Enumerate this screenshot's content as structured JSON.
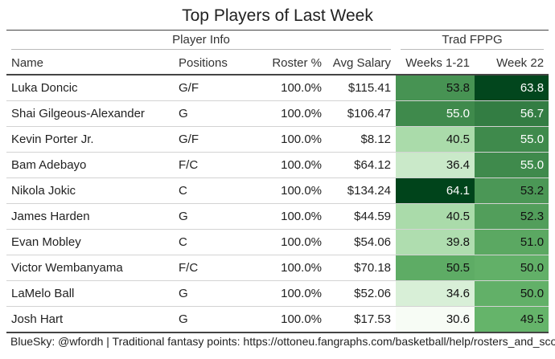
{
  "title": "Top Players of Last Week",
  "spanners": {
    "player_info": "Player Info",
    "trad_fppg": "Trad FPPG"
  },
  "columns": {
    "name": "Name",
    "positions": "Positions",
    "roster": "Roster %",
    "salary": "Avg Salary",
    "weeks": "Weeks 1-21",
    "week22": "Week 22"
  },
  "rows": [
    {
      "name": "Luka Doncic",
      "positions": "G/F",
      "roster": "100.0%",
      "salary": "$115.41",
      "weeks": "53.8",
      "week22": "63.8",
      "weeks_val": 53.8,
      "week22_val": 63.8
    },
    {
      "name": "Shai Gilgeous-Alexander",
      "positions": "G",
      "roster": "100.0%",
      "salary": "$106.47",
      "weeks": "55.0",
      "week22": "56.7",
      "weeks_val": 55.0,
      "week22_val": 56.7
    },
    {
      "name": "Kevin Porter Jr.",
      "positions": "G/F",
      "roster": "100.0%",
      "salary": "$8.12",
      "weeks": "40.5",
      "week22": "55.0",
      "weeks_val": 40.5,
      "week22_val": 55.0
    },
    {
      "name": "Bam Adebayo",
      "positions": "F/C",
      "roster": "100.0%",
      "salary": "$64.12",
      "weeks": "36.4",
      "week22": "55.0",
      "weeks_val": 36.4,
      "week22_val": 55.0
    },
    {
      "name": "Nikola Jokic",
      "positions": "C",
      "roster": "100.0%",
      "salary": "$134.24",
      "weeks": "64.1",
      "week22": "53.2",
      "weeks_val": 64.1,
      "week22_val": 53.2
    },
    {
      "name": "James Harden",
      "positions": "G",
      "roster": "100.0%",
      "salary": "$44.59",
      "weeks": "40.5",
      "week22": "52.3",
      "weeks_val": 40.5,
      "week22_val": 52.3
    },
    {
      "name": "Evan Mobley",
      "positions": "C",
      "roster": "100.0%",
      "salary": "$54.06",
      "weeks": "39.8",
      "week22": "51.0",
      "weeks_val": 39.8,
      "week22_val": 51.0
    },
    {
      "name": "Victor Wembanyama",
      "positions": "F/C",
      "roster": "100.0%",
      "salary": "$70.18",
      "weeks": "50.5",
      "week22": "50.0",
      "weeks_val": 50.5,
      "week22_val": 50.0
    },
    {
      "name": "LaMelo Ball",
      "positions": "G",
      "roster": "100.0%",
      "salary": "$52.06",
      "weeks": "34.6",
      "week22": "50.0",
      "weeks_val": 34.6,
      "week22_val": 50.0
    },
    {
      "name": "Josh Hart",
      "positions": "G",
      "roster": "100.0%",
      "salary": "$17.53",
      "weeks": "30.6",
      "week22": "49.5",
      "weeks_val": 30.6,
      "week22_val": 49.5
    }
  ],
  "color_scale": {
    "min": 30.6,
    "max": 64.1,
    "low": "#f7fcf5",
    "mid": "#74c476",
    "high": "#00441b"
  },
  "footer": "BlueSky: @wfordh | Traditional fantasy points: https://ottoneu.fangraphs.com/basketball/help/rosters_and_scoring"
}
